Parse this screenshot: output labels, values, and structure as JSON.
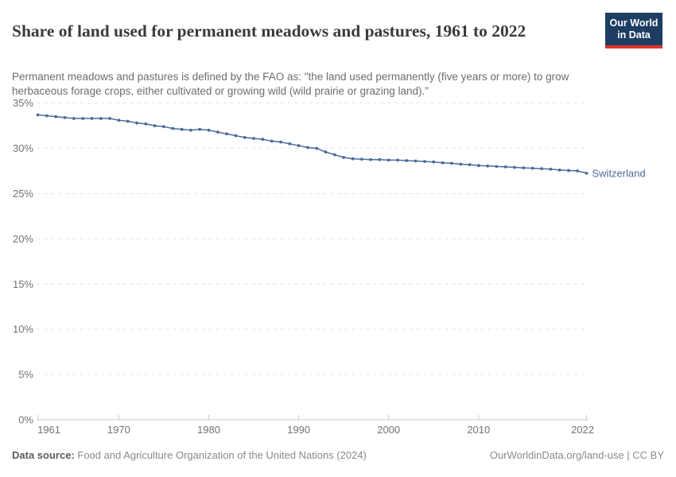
{
  "header": {
    "title": "Share of land used for permanent meadows and pastures, 1961 to 2022",
    "subtitle": "Permanent meadows and pastures is defined by the FAO as: \"the land used permanently (five years or more) to grow herbaceous forage crops, either cultivated or growing wild (wild prairie or grazing land).\"",
    "logo": {
      "line1": "Our World",
      "line2": "in Data",
      "bg_color": "#1d3d63",
      "accent_color": "#e0342c"
    }
  },
  "chart_data": {
    "type": "line",
    "title": "Share of land used for permanent meadows and pastures, 1961 to 2022",
    "xlabel": "",
    "ylabel": "",
    "xlim": [
      1961,
      2022
    ],
    "ylim": [
      0,
      35
    ],
    "grid": "horizontal-dashed",
    "legend_position": "end-of-line-label",
    "x_ticks": [
      1961,
      1970,
      1980,
      1990,
      2000,
      2010,
      2022
    ],
    "y_ticks": [
      35,
      30,
      25,
      20,
      15,
      10,
      5,
      0
    ],
    "y_tick_suffix": "%",
    "series": [
      {
        "name": "Switzerland",
        "color": "#4c6a9c",
        "x": [
          1961,
          1962,
          1963,
          1964,
          1965,
          1966,
          1967,
          1968,
          1969,
          1970,
          1971,
          1972,
          1973,
          1974,
          1975,
          1976,
          1977,
          1978,
          1979,
          1980,
          1981,
          1982,
          1983,
          1984,
          1985,
          1986,
          1987,
          1988,
          1989,
          1990,
          1991,
          1992,
          1993,
          1994,
          1995,
          1996,
          1997,
          1998,
          1999,
          2000,
          2001,
          2002,
          2003,
          2004,
          2005,
          2006,
          2007,
          2008,
          2009,
          2010,
          2011,
          2012,
          2013,
          2014,
          2015,
          2016,
          2017,
          2018,
          2019,
          2020,
          2021,
          2022
        ],
        "values": [
          33.7,
          33.6,
          33.5,
          33.4,
          33.3,
          33.3,
          33.3,
          33.3,
          33.3,
          33.1,
          33.0,
          32.8,
          32.7,
          32.5,
          32.4,
          32.2,
          32.1,
          32.0,
          32.1,
          32.0,
          31.8,
          31.6,
          31.4,
          31.2,
          31.1,
          31.0,
          30.8,
          30.7,
          30.5,
          30.3,
          30.1,
          30.0,
          29.6,
          29.3,
          29.0,
          28.85,
          28.8,
          28.75,
          28.75,
          28.7,
          28.7,
          28.65,
          28.6,
          28.55,
          28.5,
          28.4,
          28.35,
          28.25,
          28.2,
          28.1,
          28.05,
          28.0,
          27.95,
          27.9,
          27.85,
          27.8,
          27.75,
          27.7,
          27.6,
          27.55,
          27.5,
          27.25
        ]
      }
    ],
    "colors": {
      "grid": "#e2e2e2",
      "axis": "#c8c8c8",
      "tick_text": "#737373"
    }
  },
  "footer": {
    "datasource_label": "Data source:",
    "datasource_text": "Food and Agriculture Organization of the United Nations (2024)",
    "license_text": "OurWorldinData.org/land-use | CC BY"
  }
}
